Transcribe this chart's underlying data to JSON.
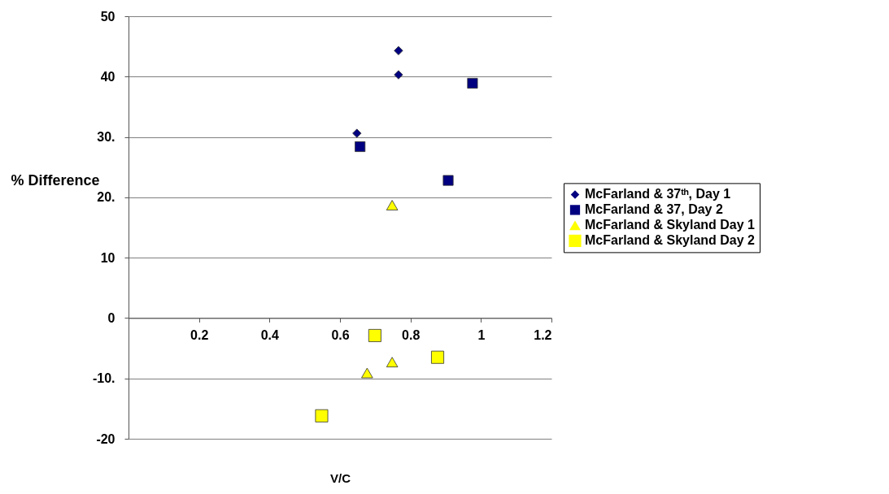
{
  "chart_data": {
    "type": "scatter",
    "xlabel": "V/C",
    "ylabel": "% Difference",
    "xlim": [
      0,
      1.2
    ],
    "xticks": [
      0.2,
      0.4,
      0.6,
      0.8,
      1,
      1.2
    ],
    "ylim": [
      -20,
      50
    ],
    "yticks": [
      {
        "value": -20,
        "label": "-20"
      },
      {
        "value": -10,
        "label": "-10."
      },
      0,
      10,
      {
        "value": 20,
        "label": "20."
      },
      {
        "value": 30,
        "label": "30."
      },
      40,
      50
    ],
    "grid": "y",
    "legend": "right",
    "series": [
      {
        "name": "McFarland & 37ᵗʰ, Day 1",
        "color": "#000080",
        "marker": "diamond",
        "x": [
          0.766,
          0.766,
          0.648
        ],
        "values": [
          44.3,
          40.3,
          30.6
        ]
      },
      {
        "name": "McFarland & 37, Day 2",
        "color": "#000080",
        "marker": "square",
        "x": [
          0.657,
          0.976,
          0.907
        ],
        "values": [
          28.4,
          38.9,
          22.8
        ]
      },
      {
        "name": "McFarland & Skyland Day 1",
        "color": "#ffff00",
        "marker": "triangle",
        "x": [
          0.748,
          0.677,
          0.748
        ],
        "values": [
          18.7,
          -9.1,
          -7.3
        ]
      },
      {
        "name": "McFarland & Skyland Day 2",
        "color": "#ffff00",
        "marker": "square",
        "x": [
          0.699,
          0.548,
          0.877
        ],
        "values": [
          -2.9,
          -16.2,
          -6.5
        ]
      }
    ]
  }
}
